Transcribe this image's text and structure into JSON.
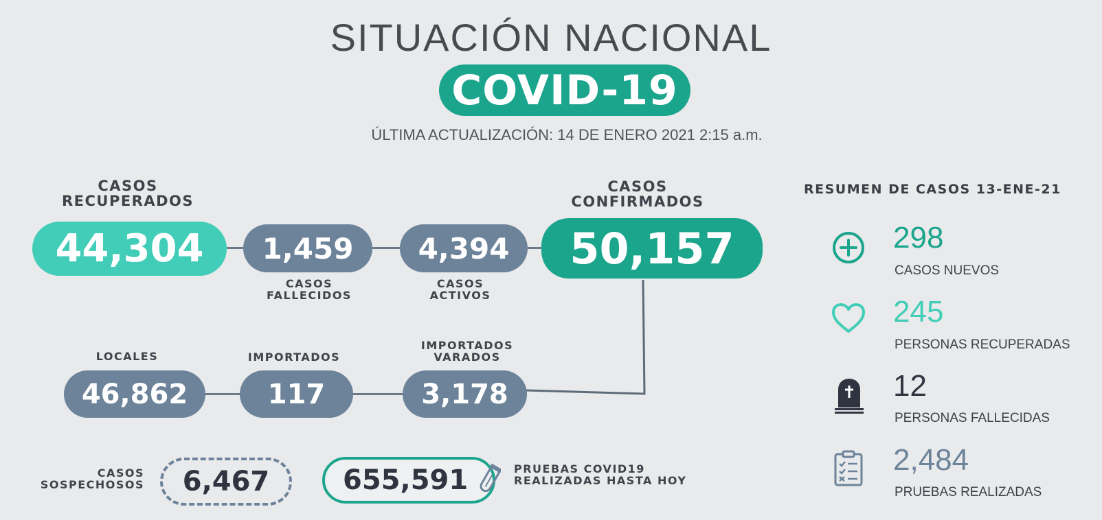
{
  "header": {
    "title": "SITUACIÓN NACIONAL",
    "badge": "COVID-19",
    "updated": "ÚLTIMA ACTUALIZACIÓN: 14 DE ENERO 2021 2:15 a.m."
  },
  "main": {
    "recuperados": {
      "label_1": "CASOS",
      "label_2": "RECUPERADOS",
      "value": "44,304"
    },
    "fallecidos": {
      "label_1": "CASOS",
      "label_2": "FALLECIDOS",
      "value": "1,459"
    },
    "activos": {
      "label_1": "CASOS",
      "label_2": "ACTIVOS",
      "value": "4,394"
    },
    "confirmados": {
      "label_1": "CASOS",
      "label_2": "CONFIRMADOS",
      "value": "50,157"
    },
    "locales": {
      "label": "LOCALES",
      "value": "46,862"
    },
    "importados": {
      "label": "IMPORTADOS",
      "value": "117"
    },
    "varados": {
      "label_1": "IMPORTADOS",
      "label_2": "VARADOS",
      "value": "3,178"
    },
    "sospechosos": {
      "label_1": "CASOS",
      "label_2": "SOSPECHOSOS",
      "value": "6,467"
    },
    "pruebas": {
      "label_1": "PRUEBAS COVID19",
      "label_2": "REALIZADAS HASTA HOY",
      "value": "655,591"
    }
  },
  "summary": {
    "title": "RESUMEN DE CASOS 13-ENE-21",
    "items": [
      {
        "value": "298",
        "label": "CASOS NUEVOS",
        "icon": "plus-circle-icon",
        "color": "#1ba58c"
      },
      {
        "value": "245",
        "label": "PERSONAS RECUPERADAS",
        "icon": "heart-icon",
        "color": "#41cdb7"
      },
      {
        "value": "12",
        "label": "PERSONAS FALLECIDAS",
        "icon": "tombstone-icon",
        "color": "#2f3440"
      },
      {
        "value": "2,484",
        "label": "PRUEBAS REALIZADAS",
        "icon": "clipboard-icon",
        "color": "#6c839a"
      }
    ]
  },
  "colors": {
    "background": "#e9eaec",
    "green": "#1ba58c",
    "mint": "#41cdb7",
    "slate": "#6c839a",
    "dark": "#2f3440"
  }
}
